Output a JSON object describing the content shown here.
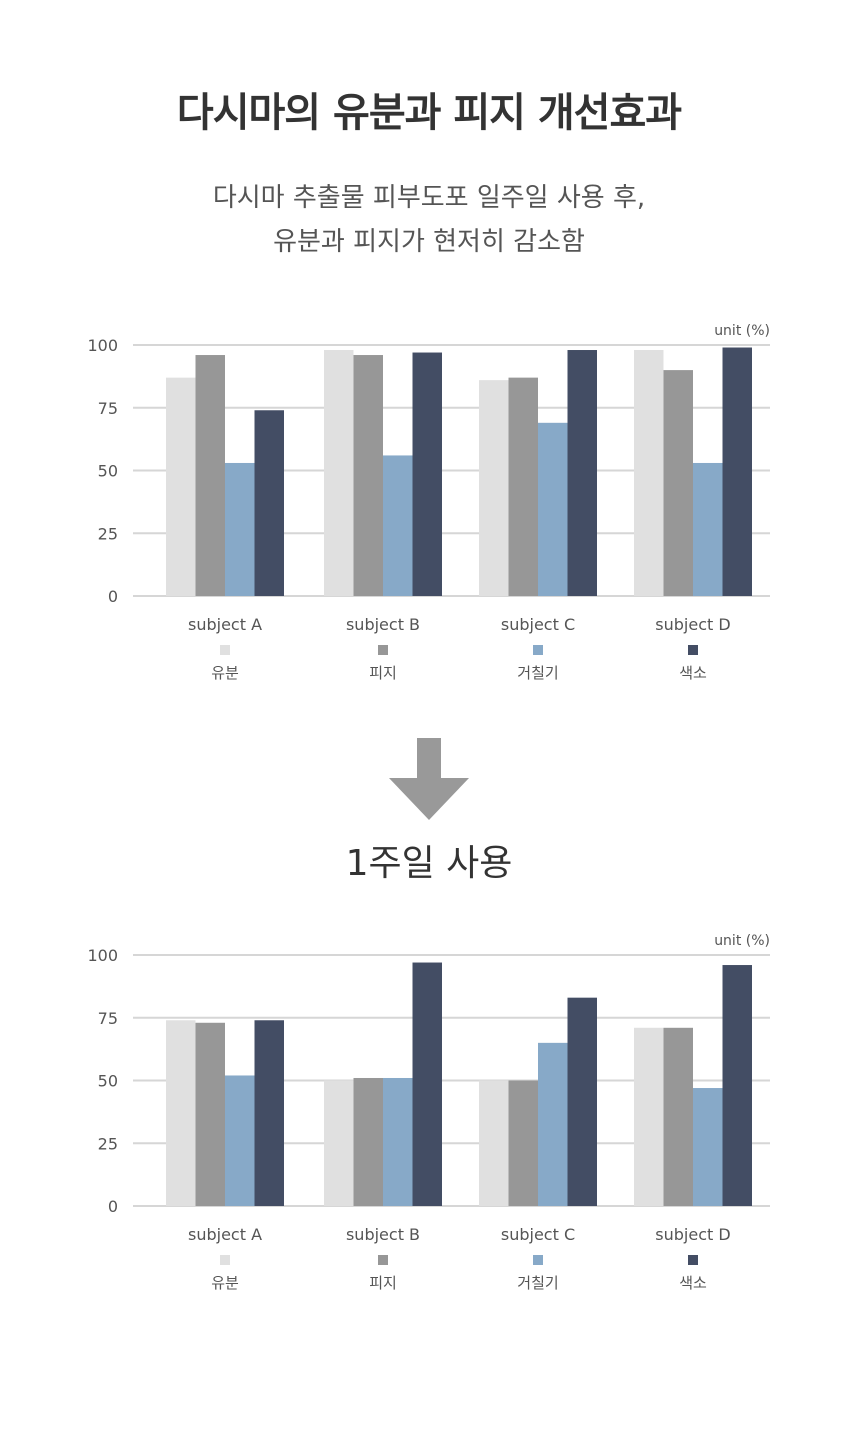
{
  "title": "다시마의 유분과 피지 개선효과",
  "subtitle": [
    "다시마 추출물 피부도포 일주일 사용 후,",
    "유분과 피지가 현저히 감소함"
  ],
  "after_label": "1주일 사용",
  "colors": {
    "series": [
      "#e0e0e0",
      "#979797",
      "#87a9c8",
      "#434d64"
    ],
    "grid": "#d6d6d6",
    "axis_text": "#555555",
    "arrow": "#999999"
  },
  "icons": {
    "arrow": "arrow-down-icon"
  },
  "chart_data": [
    {
      "type": "bar",
      "unit_label": "unit (%)",
      "categories": [
        "subject A",
        "subject B",
        "subject C",
        "subject D"
      ],
      "ylim": [
        0,
        100
      ],
      "yticks": [
        0,
        25,
        50,
        75,
        100
      ],
      "grid": true,
      "legend_position": "bottom",
      "series": [
        {
          "name": "유분",
          "values": [
            87,
            98,
            86,
            98
          ]
        },
        {
          "name": "피지",
          "values": [
            96,
            96,
            87,
            90
          ]
        },
        {
          "name": "거칠기",
          "values": [
            53,
            56,
            69,
            53
          ]
        },
        {
          "name": "색소",
          "values": [
            74,
            97,
            98,
            99
          ]
        }
      ]
    },
    {
      "type": "bar",
      "unit_label": "unit (%)",
      "categories": [
        "subject A",
        "subject B",
        "subject C",
        "subject D"
      ],
      "ylim": [
        0,
        100
      ],
      "yticks": [
        0,
        25,
        50,
        75,
        100
      ],
      "grid": true,
      "legend_position": "bottom",
      "series": [
        {
          "name": "유분",
          "values": [
            74,
            50,
            50,
            71
          ]
        },
        {
          "name": "피지",
          "values": [
            73,
            51,
            50,
            71
          ]
        },
        {
          "name": "거칠기",
          "values": [
            52,
            51,
            65,
            47
          ]
        },
        {
          "name": "색소",
          "values": [
            74,
            97,
            83,
            96
          ]
        }
      ]
    }
  ]
}
